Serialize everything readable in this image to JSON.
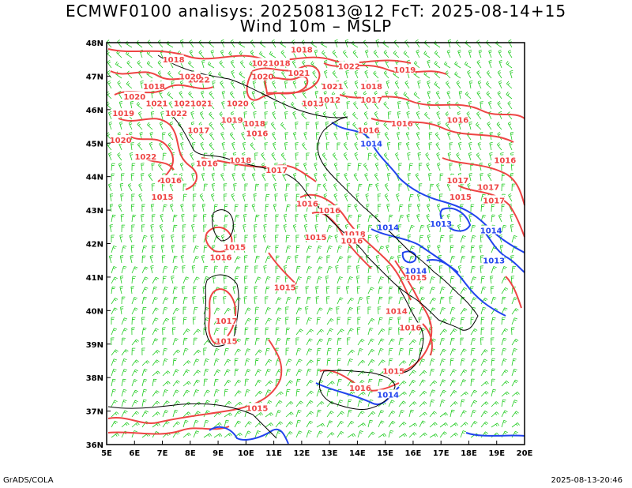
{
  "title_line1": "ECMWF0100 analisys: 20250813@12 FcT: 2025-08-14+15",
  "title_line2": "Wind 10m – MSLP",
  "footer_left": "GrADS/COLA",
  "footer_right": "2025-08-13-20:46",
  "colors": {
    "wind_barbs": "#22cc22",
    "isobar_high": "#ee4444",
    "isobar_low": "#2244ee",
    "coastline": "#000000"
  },
  "map": {
    "lon_range": [
      5,
      20
    ],
    "lat_range": [
      36,
      48
    ],
    "lon_ticks": [
      "5E",
      "6E",
      "7E",
      "8E",
      "9E",
      "10E",
      "11E",
      "12E",
      "13E",
      "14E",
      "15E",
      "16E",
      "17E",
      "18E",
      "19E",
      "20E"
    ],
    "lat_ticks": [
      "36N",
      "37N",
      "38N",
      "39N",
      "40N",
      "41N",
      "42N",
      "43N",
      "44N",
      "45N",
      "46N",
      "47N",
      "48N"
    ],
    "isobar_labels": [
      {
        "text": "1018",
        "lon": 7.4,
        "lat": 47.5,
        "c": "high"
      },
      {
        "text": "1018",
        "lon": 6.7,
        "lat": 46.7,
        "c": "high"
      },
      {
        "text": "1020",
        "lon": 6.0,
        "lat": 46.4,
        "c": "high"
      },
      {
        "text": "1019",
        "lon": 5.6,
        "lat": 45.9,
        "c": "high"
      },
      {
        "text": "1021",
        "lon": 6.8,
        "lat": 46.2,
        "c": "high"
      },
      {
        "text": "1022",
        "lon": 8.3,
        "lat": 46.9,
        "c": "high"
      },
      {
        "text": "1020",
        "lon": 8.0,
        "lat": 47.0,
        "c": "high"
      },
      {
        "text": "1021",
        "lon": 7.8,
        "lat": 46.2,
        "c": "high"
      },
      {
        "text": "1021",
        "lon": 8.4,
        "lat": 46.2,
        "c": "high"
      },
      {
        "text": "1022",
        "lon": 7.5,
        "lat": 45.9,
        "c": "high"
      },
      {
        "text": "1020",
        "lon": 5.5,
        "lat": 45.1,
        "c": "high"
      },
      {
        "text": "1022",
        "lon": 6.4,
        "lat": 44.6,
        "c": "high"
      },
      {
        "text": "1017",
        "lon": 8.3,
        "lat": 45.4,
        "c": "high"
      },
      {
        "text": "1019",
        "lon": 9.5,
        "lat": 45.7,
        "c": "high"
      },
      {
        "text": "1020",
        "lon": 9.7,
        "lat": 46.2,
        "c": "high"
      },
      {
        "text": "1018",
        "lon": 10.3,
        "lat": 45.6,
        "c": "high"
      },
      {
        "text": "1016",
        "lon": 10.4,
        "lat": 45.3,
        "c": "high"
      },
      {
        "text": "1018",
        "lon": 9.8,
        "lat": 44.5,
        "c": "high"
      },
      {
        "text": "1017",
        "lon": 11.1,
        "lat": 44.2,
        "c": "high"
      },
      {
        "text": "1016",
        "lon": 8.6,
        "lat": 44.4,
        "c": "high"
      },
      {
        "text": "1016",
        "lon": 7.3,
        "lat": 43.9,
        "c": "high"
      },
      {
        "text": "1015",
        "lon": 7.0,
        "lat": 43.4,
        "c": "high"
      },
      {
        "text": "1018",
        "lon": 12.0,
        "lat": 47.8,
        "c": "high"
      },
      {
        "text": "1021",
        "lon": 10.6,
        "lat": 47.4,
        "c": "high"
      },
      {
        "text": "1018",
        "lon": 11.2,
        "lat": 47.4,
        "c": "high"
      },
      {
        "text": "1020",
        "lon": 10.6,
        "lat": 47.0,
        "c": "high"
      },
      {
        "text": "1021",
        "lon": 11.9,
        "lat": 47.1,
        "c": "high"
      },
      {
        "text": "1022",
        "lon": 13.7,
        "lat": 47.3,
        "c": "high"
      },
      {
        "text": "1019",
        "lon": 15.7,
        "lat": 47.2,
        "c": "high"
      },
      {
        "text": "1021",
        "lon": 13.1,
        "lat": 46.7,
        "c": "high"
      },
      {
        "text": "1018",
        "lon": 14.5,
        "lat": 46.7,
        "c": "high"
      },
      {
        "text": "1015",
        "lon": 12.4,
        "lat": 46.2,
        "c": "high"
      },
      {
        "text": "1012",
        "lon": 13.0,
        "lat": 46.3,
        "c": "high"
      },
      {
        "text": "1017",
        "lon": 14.5,
        "lat": 46.3,
        "c": "high"
      },
      {
        "text": "1016",
        "lon": 14.4,
        "lat": 45.4,
        "c": "high"
      },
      {
        "text": "1016",
        "lon": 15.6,
        "lat": 45.6,
        "c": "high"
      },
      {
        "text": "1016",
        "lon": 17.6,
        "lat": 45.7,
        "c": "high"
      },
      {
        "text": "1016",
        "lon": 19.3,
        "lat": 44.5,
        "c": "high"
      },
      {
        "text": "1017",
        "lon": 17.6,
        "lat": 43.9,
        "c": "high"
      },
      {
        "text": "1017",
        "lon": 18.7,
        "lat": 43.7,
        "c": "high"
      },
      {
        "text": "1015",
        "lon": 17.7,
        "lat": 43.4,
        "c": "high"
      },
      {
        "text": "1017",
        "lon": 18.9,
        "lat": 43.3,
        "c": "high"
      },
      {
        "text": "1016",
        "lon": 12.2,
        "lat": 43.2,
        "c": "high"
      },
      {
        "text": "1016",
        "lon": 13.0,
        "lat": 43.0,
        "c": "high"
      },
      {
        "text": "1018",
        "lon": 13.9,
        "lat": 42.3,
        "c": "high"
      },
      {
        "text": "1015",
        "lon": 12.5,
        "lat": 42.2,
        "c": "high"
      },
      {
        "text": "1016",
        "lon": 13.8,
        "lat": 42.1,
        "c": "high"
      },
      {
        "text": "1015",
        "lon": 9.6,
        "lat": 41.9,
        "c": "high"
      },
      {
        "text": "1016",
        "lon": 9.1,
        "lat": 41.6,
        "c": "high"
      },
      {
        "text": "1015",
        "lon": 11.4,
        "lat": 40.7,
        "c": "high"
      },
      {
        "text": "1015",
        "lon": 16.1,
        "lat": 41.0,
        "c": "high"
      },
      {
        "text": "1014",
        "lon": 15.4,
        "lat": 40.0,
        "c": "high"
      },
      {
        "text": "1016",
        "lon": 15.9,
        "lat": 39.5,
        "c": "high"
      },
      {
        "text": "1017",
        "lon": 9.3,
        "lat": 39.7,
        "c": "high"
      },
      {
        "text": "1015",
        "lon": 9.3,
        "lat": 39.1,
        "c": "high"
      },
      {
        "text": "1015",
        "lon": 15.3,
        "lat": 38.2,
        "c": "high"
      },
      {
        "text": "1016",
        "lon": 14.1,
        "lat": 37.7,
        "c": "high"
      },
      {
        "text": "1015",
        "lon": 10.4,
        "lat": 37.1,
        "c": "high"
      },
      {
        "text": "1014",
        "lon": 14.5,
        "lat": 45.0,
        "c": "low"
      },
      {
        "text": "1014",
        "lon": 15.1,
        "lat": 42.5,
        "c": "low"
      },
      {
        "text": "1013",
        "lon": 17.0,
        "lat": 42.6,
        "c": "low"
      },
      {
        "text": "1014",
        "lon": 18.8,
        "lat": 42.4,
        "c": "low"
      },
      {
        "text": "1013",
        "lon": 18.9,
        "lat": 41.5,
        "c": "low"
      },
      {
        "text": "1014",
        "lon": 16.1,
        "lat": 41.2,
        "c": "low"
      },
      {
        "text": "1014",
        "lon": 15.1,
        "lat": 37.5,
        "c": "low"
      }
    ]
  }
}
